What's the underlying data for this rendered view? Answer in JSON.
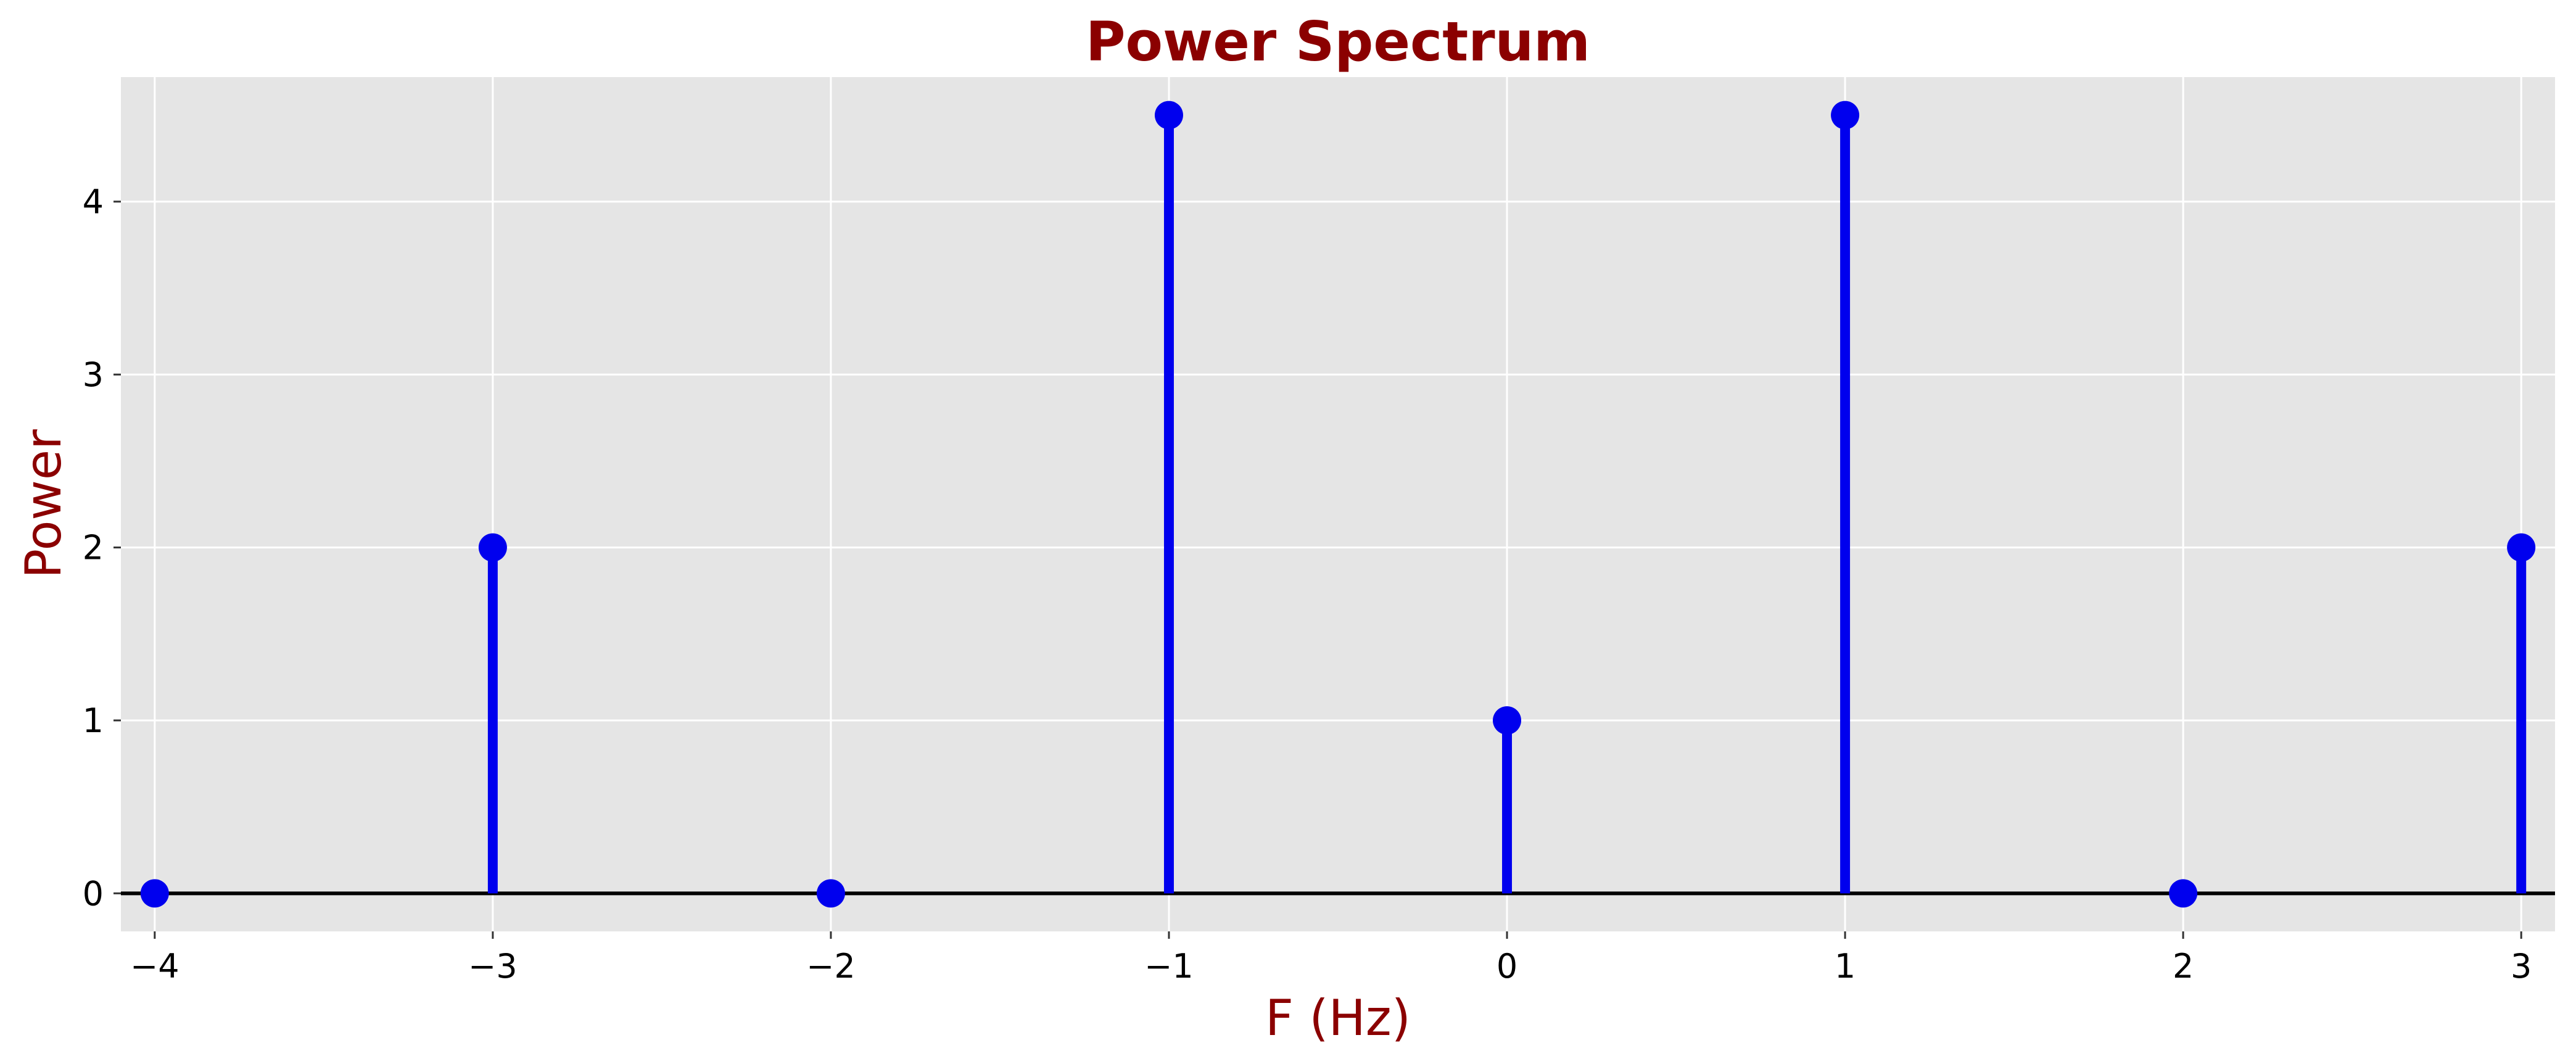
{
  "chart_data": {
    "type": "stem",
    "title": "Power Spectrum",
    "xlabel": "F (Hz)",
    "ylabel": "Power",
    "x": [
      -4,
      -3,
      -2,
      -1,
      0,
      1,
      2,
      3
    ],
    "values": [
      0,
      2,
      0,
      4.5,
      1,
      4.5,
      0,
      2
    ],
    "xlim": [
      -4.1,
      3.1
    ],
    "ylim": [
      -0.22,
      4.72
    ],
    "xticks": [
      -4,
      -3,
      -2,
      -1,
      0,
      1,
      2,
      3
    ],
    "xtick_labels": [
      "−4",
      "−3",
      "−2",
      "−1",
      "0",
      "1",
      "2",
      "3"
    ],
    "yticks": [
      0,
      1,
      2,
      3,
      4
    ],
    "ytick_labels": [
      "0",
      "1",
      "2",
      "3",
      "4"
    ],
    "grid": true,
    "baseline": 0,
    "colors": {
      "stem": "#0000ee",
      "title": "#8b0000",
      "labels": "#8b0000",
      "plot_background": "#e5e5e5",
      "grid": "#ffffff",
      "baseline": "#000000"
    }
  }
}
